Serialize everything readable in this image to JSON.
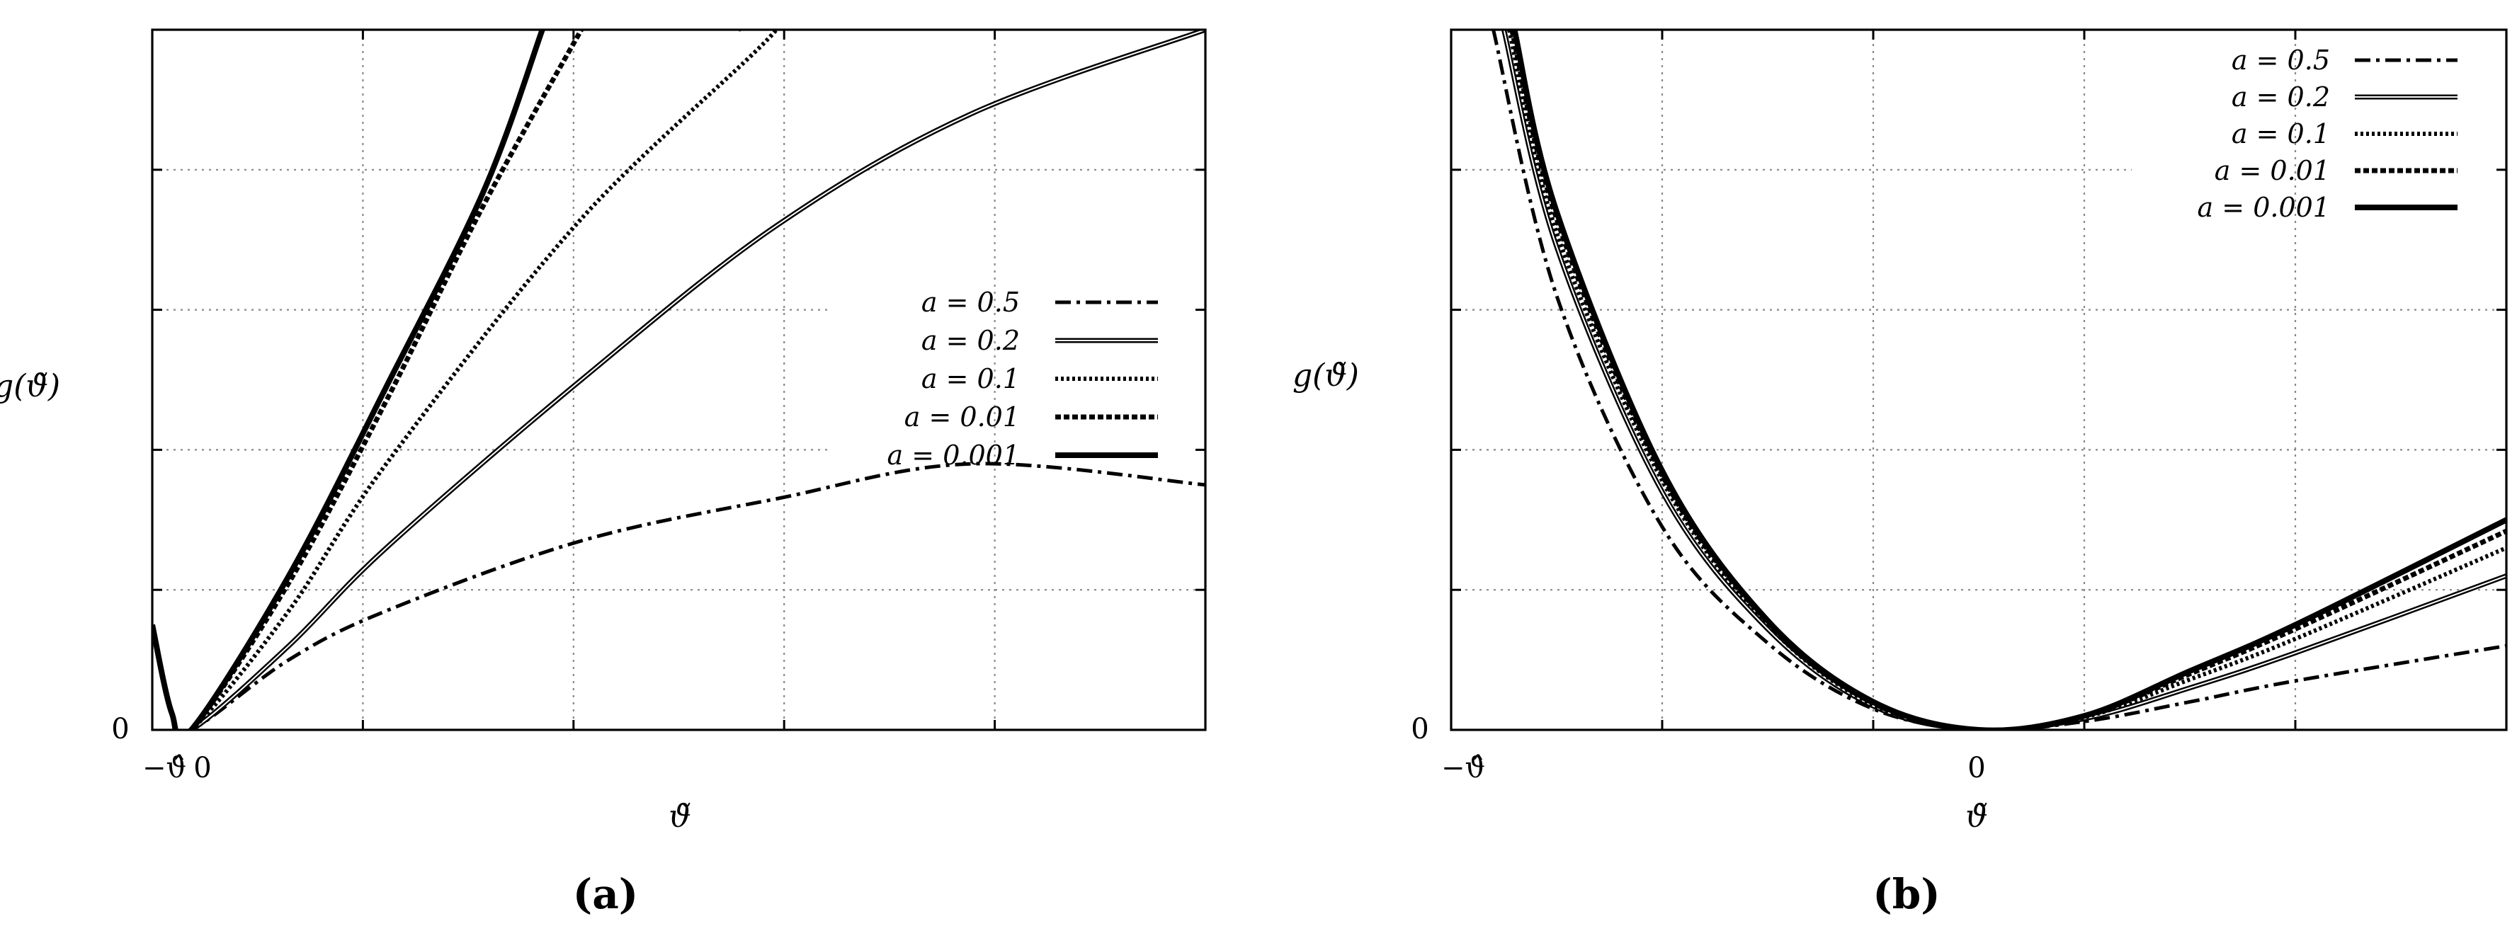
{
  "chart_data": [
    {
      "type": "line",
      "panel_label": "(a)",
      "xlabel": "ϑ̃",
      "ylabel": "g(ϑ̃)",
      "x_tick_labels": [
        "−ϑ̂",
        "0"
      ],
      "y_tick_labels": [
        "0"
      ],
      "grid": true,
      "legend_placement": "center-right",
      "xlim": [
        -0.1,
        2.6
      ],
      "ylim": [
        0,
        5
      ],
      "series": [
        {
          "name": "a = 0.5",
          "style": "dash-dot",
          "x": [
            -0.1,
            -0.05,
            0,
            0.25,
            0.5,
            1.0,
            1.5,
            2.0,
            2.6
          ],
          "y": [
            0.75,
            0.12,
            0,
            0.5,
            0.85,
            1.35,
            1.65,
            1.9,
            1.75
          ]
        },
        {
          "name": "a = 0.2",
          "style": "double-thin",
          "x": [
            -0.1,
            -0.05,
            0,
            0.25,
            0.5,
            1.0,
            1.5,
            2.0,
            2.6
          ],
          "y": [
            0.75,
            0.12,
            0,
            0.6,
            1.3,
            2.5,
            3.6,
            4.4,
            5.0
          ]
        },
        {
          "name": "a = 0.1",
          "style": "dotted",
          "x": [
            -0.1,
            -0.05,
            0,
            0.25,
            0.5,
            1.0,
            1.5,
            1.4
          ],
          "y": [
            0.75,
            0.12,
            0,
            0.85,
            1.9,
            3.65,
            5.0,
            5.0
          ]
        },
        {
          "name": "a = 0.01",
          "style": "dashed",
          "x": [
            -0.1,
            -0.05,
            0,
            0.25,
            0.5,
            0.75,
            1.0
          ],
          "y": [
            0.75,
            0.12,
            0,
            1.05,
            2.35,
            3.75,
            5.0
          ]
        },
        {
          "name": "a = 0.001",
          "style": "solid",
          "x": [
            -0.1,
            -0.05,
            0,
            0.25,
            0.5,
            0.75,
            0.9
          ],
          "y": [
            0.75,
            0.12,
            0,
            1.1,
            2.45,
            3.85,
            5.0
          ]
        }
      ]
    },
    {
      "type": "line",
      "panel_label": "(b)",
      "xlabel": "ϑ̃",
      "ylabel": "g(ϑ̃)",
      "x_tick_labels": [
        "−ϑ̂",
        "0"
      ],
      "y_tick_labels": [
        "0"
      ],
      "grid": true,
      "legend_placement": "top-right",
      "xlim": [
        -1,
        1
      ],
      "ylim": [
        0,
        5
      ],
      "series": [
        {
          "name": "a = 0.5",
          "style": "dash-dot",
          "x": [
            -0.92,
            -0.8,
            -0.6,
            -0.4,
            -0.2,
            0,
            0.2,
            0.4,
            0.6,
            1.0
          ],
          "y": [
            5.0,
            3.1,
            1.45,
            0.62,
            0.15,
            0,
            0.06,
            0.2,
            0.35,
            0.6
          ]
        },
        {
          "name": "a = 0.2",
          "style": "double-thin",
          "x": [
            -0.9,
            -0.8,
            -0.6,
            -0.4,
            -0.2,
            0,
            0.2,
            0.4,
            0.6,
            1.0
          ],
          "y": [
            5.0,
            3.45,
            1.7,
            0.72,
            0.17,
            0,
            0.08,
            0.3,
            0.55,
            1.1
          ]
        },
        {
          "name": "a = 0.1",
          "style": "dotted",
          "x": [
            -0.89,
            -0.8,
            -0.6,
            -0.4,
            -0.2,
            0,
            0.2,
            0.4,
            0.6,
            1.0
          ],
          "y": [
            5.0,
            3.55,
            1.78,
            0.75,
            0.18,
            0,
            0.09,
            0.36,
            0.65,
            1.3
          ]
        },
        {
          "name": "a = 0.01",
          "style": "dashed",
          "x": [
            -0.885,
            -0.8,
            -0.6,
            -0.4,
            -0.2,
            0,
            0.2,
            0.4,
            0.6,
            1.0
          ],
          "y": [
            5.0,
            3.65,
            1.82,
            0.77,
            0.19,
            0,
            0.1,
            0.4,
            0.72,
            1.42
          ]
        },
        {
          "name": "a = 0.001",
          "style": "solid",
          "x": [
            -0.88,
            -0.8,
            -0.6,
            -0.4,
            -0.2,
            0,
            0.2,
            0.4,
            0.6,
            1.0
          ],
          "y": [
            5.0,
            3.7,
            1.85,
            0.78,
            0.2,
            0,
            0.1,
            0.42,
            0.75,
            1.5
          ]
        }
      ]
    }
  ]
}
